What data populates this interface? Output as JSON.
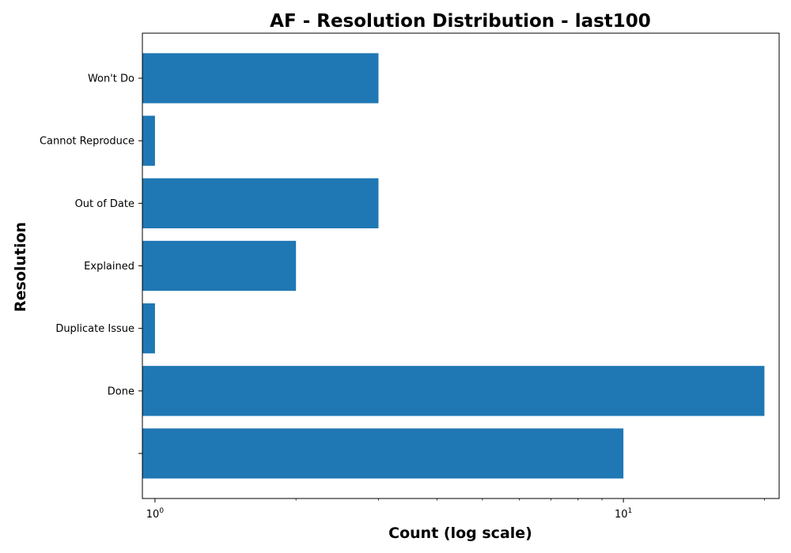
{
  "chart_data": {
    "type": "bar",
    "orientation": "horizontal",
    "title": "AF - Resolution Distribution - last100",
    "xlabel": "Count (log scale)",
    "ylabel": "Resolution",
    "x_scale": "log",
    "xlim": [
      0.94,
      21.5
    ],
    "x_ticks": [
      1,
      10
    ],
    "x_tick_labels": [
      {
        "base": "10",
        "exp": "0"
      },
      {
        "base": "10",
        "exp": "1"
      }
    ],
    "categories": [
      "",
      "Done",
      "Duplicate Issue",
      "Explained",
      "Out of Date",
      "Cannot Reproduce",
      "Won't Do"
    ],
    "values": [
      10,
      20,
      1,
      2,
      3,
      1,
      3
    ],
    "bar_color": "#1f77b4",
    "grid": false,
    "legend": false
  }
}
